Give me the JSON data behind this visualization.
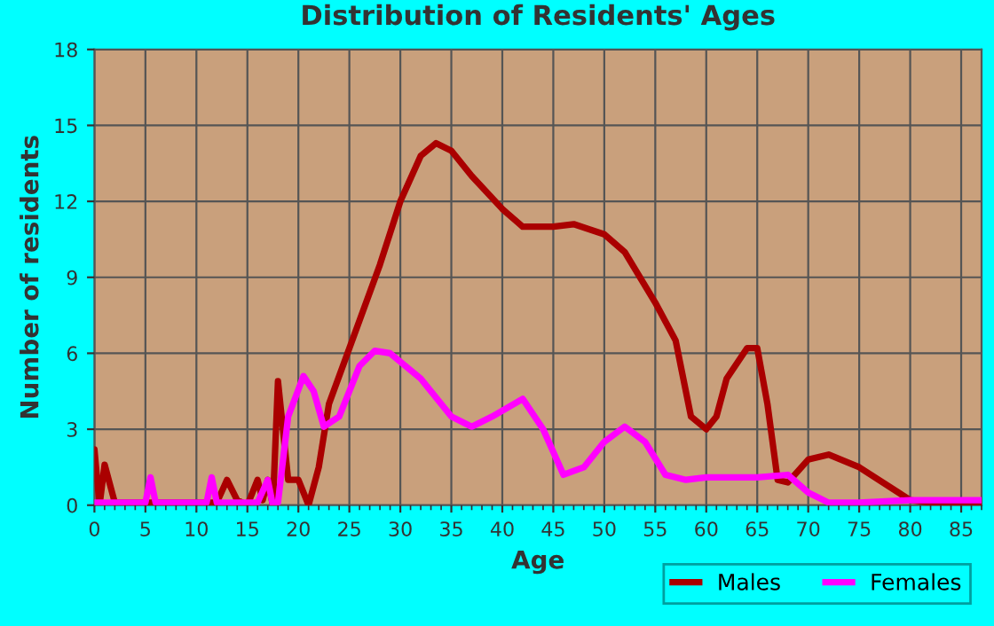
{
  "chart_data": {
    "type": "line",
    "title": "Distribution of Residents' Ages",
    "xlabel": "Age",
    "ylabel": "Number of residents",
    "xlim": [
      0,
      87
    ],
    "xticks": [
      0,
      5,
      10,
      15,
      20,
      25,
      30,
      35,
      40,
      45,
      50,
      55,
      60,
      65,
      70,
      75,
      80,
      85
    ],
    "ylim": [
      0,
      18
    ],
    "yticks": [
      0,
      3,
      6,
      9,
      12,
      15,
      18
    ],
    "grid": true,
    "legend": "bottom right",
    "marker": "none",
    "line_style": "solid",
    "series": [
      {
        "name": "Males",
        "color": "#aa0000",
        "x": [
          0,
          0.5,
          1,
          2,
          3,
          12,
          13,
          14,
          15,
          16,
          16.5,
          17,
          17.5,
          18,
          19,
          20,
          20.5,
          21,
          22,
          23,
          25,
          28,
          30,
          32,
          33.5,
          35,
          37,
          40,
          42,
          45,
          47,
          50,
          52,
          55,
          57,
          58.5,
          60,
          61,
          62,
          64,
          65,
          66,
          67,
          68,
          70,
          72,
          75,
          80,
          82,
          87
        ],
        "values": [
          2.2,
          0,
          1.6,
          0.1,
          0.1,
          0.1,
          1,
          0.2,
          0,
          1,
          0.2,
          1,
          0,
          4.9,
          1,
          1,
          0.5,
          0,
          1.5,
          4,
          6.2,
          9.5,
          12,
          13.8,
          14.3,
          14,
          13,
          11.7,
          11,
          11,
          11.1,
          10.7,
          10,
          8,
          6.5,
          3.5,
          3,
          3.5,
          5,
          6.2,
          6.2,
          4,
          1,
          0.9,
          1.8,
          2,
          1.5,
          0.2,
          0.1,
          0.1
        ]
      },
      {
        "name": "Females",
        "color": "#ff00ff",
        "x": [
          0,
          5,
          5.5,
          6,
          11,
          11.5,
          12,
          16,
          17,
          17.5,
          18,
          19,
          20.5,
          21.5,
          22.5,
          24,
          26,
          27.5,
          29,
          32,
          35,
          37,
          39,
          42,
          44,
          46,
          48,
          50,
          52,
          54,
          56,
          58,
          60,
          65,
          68,
          70,
          72,
          75,
          80,
          87
        ],
        "values": [
          0.1,
          0.1,
          1.1,
          0.1,
          0.1,
          1.1,
          0.1,
          0.1,
          1,
          0,
          0.1,
          3.5,
          5.1,
          4.5,
          3.1,
          3.5,
          5.5,
          6.1,
          6,
          5,
          3.5,
          3.1,
          3.5,
          4.2,
          3,
          1.2,
          1.5,
          2.5,
          3.1,
          2.5,
          1.2,
          1,
          1.1,
          1.1,
          1.2,
          0.5,
          0.1,
          0.1,
          0.2,
          0.2
        ]
      }
    ]
  }
}
